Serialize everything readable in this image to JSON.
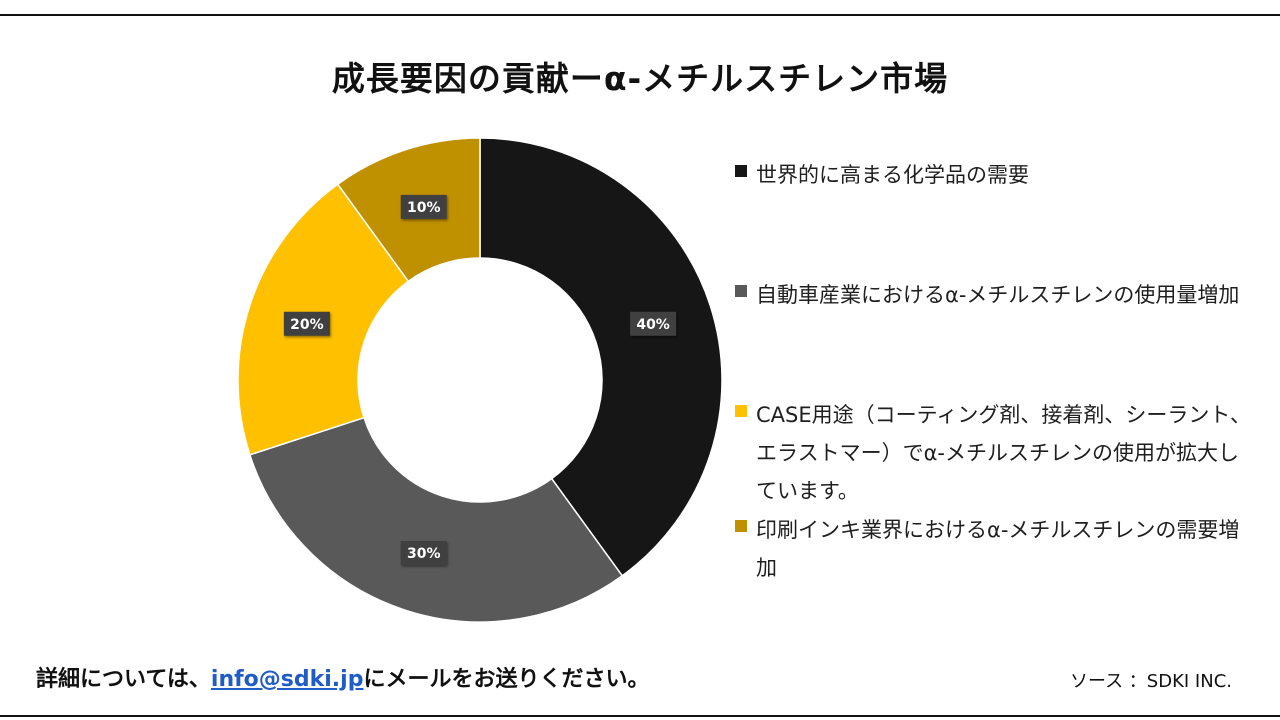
{
  "title": "成長要因の貢献ーα-メチルスチレン市場",
  "chart_data": {
    "type": "pie",
    "variant": "donut",
    "title": "成長要因の貢献ーα-メチルスチレン市場",
    "legend_position": "right",
    "slices": [
      {
        "label": "世界的に高まる化学品の需要",
        "value": 40,
        "data_label": "40%",
        "color": "#161616"
      },
      {
        "label": "自動車産業におけるα-メチルスチレンの使用量増加",
        "value": 30,
        "data_label": "30%",
        "color": "#595959"
      },
      {
        "label": "CASE用途（コーティング剤、接着剤、シーラント、エラストマー）でα-メチルスチレンの使用が拡大しています。",
        "value": 20,
        "data_label": "20%",
        "color": "#ffc000"
      },
      {
        "label": "印刷インキ業界におけるα-メチルスチレンの需要増加",
        "value": 10,
        "data_label": "10%",
        "color": "#bf9000"
      }
    ]
  },
  "legend": {
    "items": [
      {
        "text": "世界的に高まる化学品の需要"
      },
      {
        "text": "自動車産業におけるα-メチルスチレンの使用量増加"
      },
      {
        "text": "CASE用途（コーティング剤、接着剤、シーラント、エラストマー）でα-メチルスチレンの使用が拡大しています。"
      },
      {
        "text": "印刷インキ業界におけるα-メチルスチレンの需要増加"
      }
    ]
  },
  "footer": {
    "prefix": "詳細については、",
    "email": "info@sdki.jp",
    "suffix": "にメールをお送りください。",
    "source": "ソース ：SDKI INC."
  }
}
